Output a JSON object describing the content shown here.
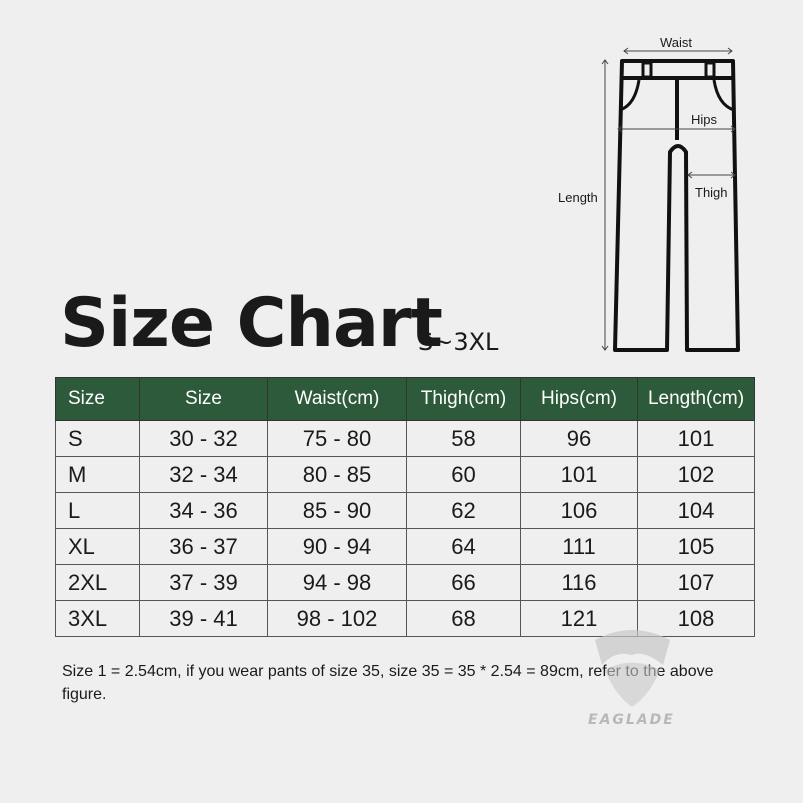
{
  "title": "Size Chart",
  "subtitle": "S~3XL",
  "diagram": {
    "waist": "Waist",
    "hips": "Hips",
    "thigh": "Thigh",
    "length": "Length"
  },
  "table": {
    "headers": [
      "Size",
      "Size",
      "Waist(cm)",
      "Thigh(cm)",
      "Hips(cm)",
      "Length(cm)"
    ],
    "rows": [
      [
        "S",
        "30 - 32",
        "75 - 80",
        "58",
        "96",
        "101"
      ],
      [
        "M",
        "32 - 34",
        "80 - 85",
        "60",
        "101",
        "102"
      ],
      [
        "L",
        "34 - 36",
        "85 - 90",
        "62",
        "106",
        "104"
      ],
      [
        "XL",
        "36 - 37",
        "90 - 94",
        "64",
        "111",
        "105"
      ],
      [
        "2XL",
        "37 - 39",
        "94 - 98",
        "66",
        "116",
        "107"
      ],
      [
        "3XL",
        "39 - 41",
        "98 - 102",
        "68",
        "121",
        "108"
      ]
    ],
    "header_color": "#2d5a3a"
  },
  "note": "Size 1 = 2.54cm, if you wear pants of size 35, size 35 = 35 * 2.54 = 89cm, refer to the above figure.",
  "logo": {
    "text": "EAGLADE",
    "icon": "eagle-shield-icon"
  }
}
